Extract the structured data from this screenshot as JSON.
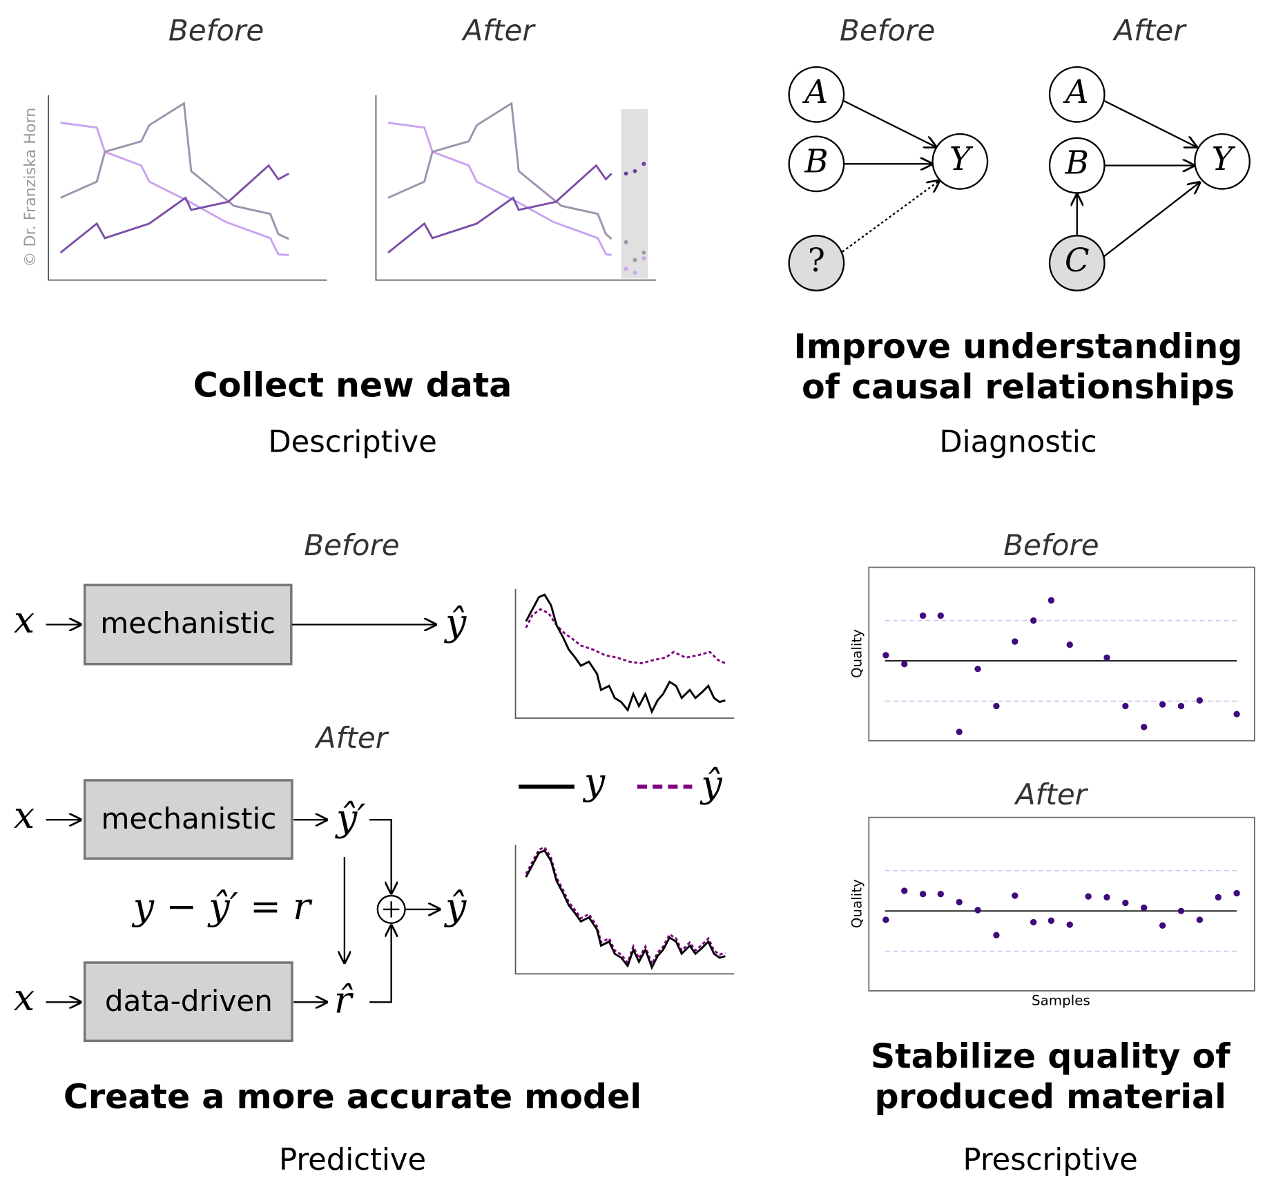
{
  "copyright": "© Dr. Franziska Horn",
  "descriptive": {
    "before": "Before",
    "after": "After",
    "title": "Collect new data",
    "subtitle": "Descriptive"
  },
  "diagnostic": {
    "before": "Before",
    "after": "After",
    "title": [
      "Improve understanding",
      "of causal relationships"
    ],
    "subtitle": "Diagnostic",
    "nodes_before": [
      "A",
      "B",
      "?",
      "Y"
    ],
    "nodes_after": [
      "A",
      "B",
      "C",
      "Y"
    ]
  },
  "predictive": {
    "before": "Before",
    "after": "After",
    "title": "Create a more accurate model",
    "subtitle": "Predictive",
    "boxes": [
      "mechanistic",
      "mechanistic",
      "data-driven"
    ],
    "math": {
      "input": "x",
      "output": "ŷ",
      "mech_output": "ŷ′",
      "residual_eq": "y − ŷ′ = r",
      "residual_hat": "r̂"
    },
    "legend": [
      "y",
      "ŷ"
    ]
  },
  "prescriptive": {
    "before": "Before",
    "after": "After",
    "title": [
      "Stabilize quality of",
      "produced material"
    ],
    "subtitle": "Prescriptive",
    "y_label": "Quality",
    "x_label": "Samples"
  }
}
